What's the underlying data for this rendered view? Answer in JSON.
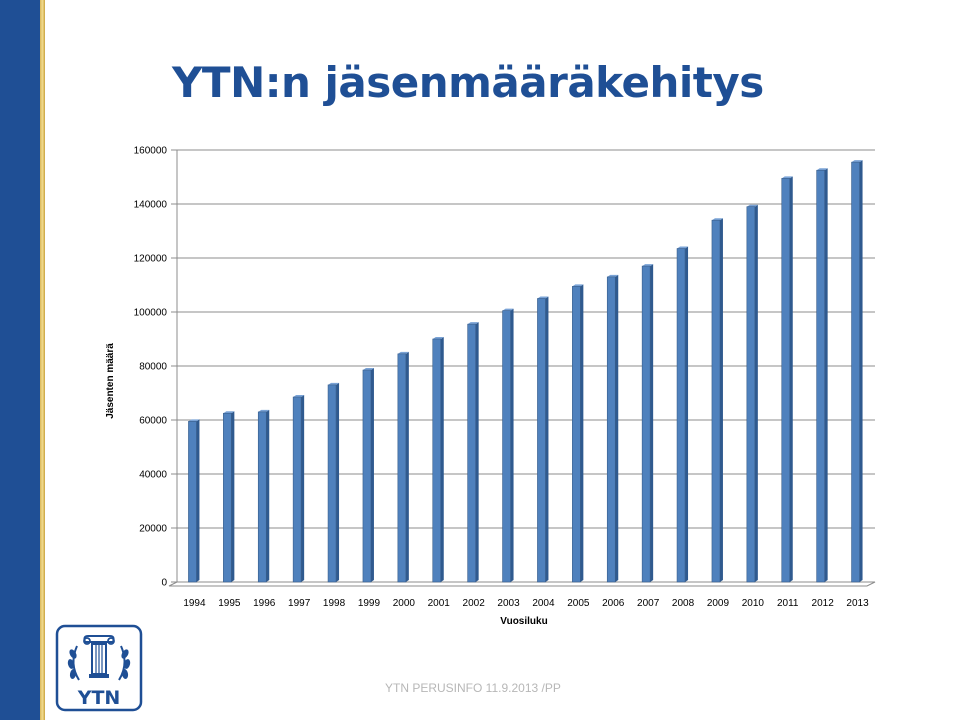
{
  "slide": {
    "title": "YTN:n jäsenmääräkehitys",
    "footer": "YTN PERUSINFO  11.9.2013 /PP",
    "logo_text": "YTN",
    "accent_color": "#1f4f95",
    "stripe_color": "#d9b65a"
  },
  "chart_data": {
    "type": "bar",
    "categories": [
      "1994",
      "1995",
      "1996",
      "1997",
      "1998",
      "1999",
      "2000",
      "2001",
      "2002",
      "2003",
      "2004",
      "2005",
      "2006",
      "2007",
      "2008",
      "2009",
      "2010",
      "2011",
      "2012",
      "2013"
    ],
    "values": [
      59500,
      62500,
      63000,
      68500,
      73000,
      78500,
      84500,
      90000,
      95500,
      100500,
      105000,
      109500,
      113000,
      117000,
      123500,
      134000,
      139000,
      149500,
      152500,
      155500
    ],
    "xlabel": "Vuosiluku",
    "ylabel": "Jäsenten määrä",
    "ylim": [
      0,
      160000
    ],
    "yticks": [
      "0",
      "20000",
      "40000",
      "60000",
      "80000",
      "100000",
      "120000",
      "140000",
      "160000"
    ],
    "grid": true,
    "bar_color": "#4f81bd"
  }
}
